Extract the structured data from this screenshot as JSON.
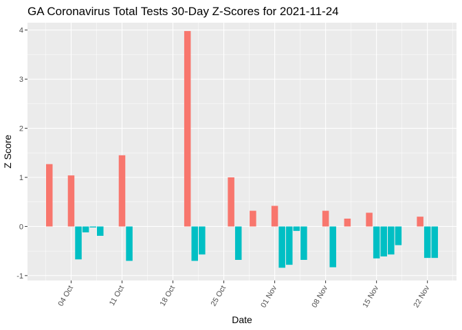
{
  "chart_data": {
    "type": "bar",
    "title": "GA Coronavirus Total Tests 30-Day Z-Scores for 2021-11-24",
    "xlabel": "Date",
    "ylabel": "Z Score",
    "x_ticks": [
      {
        "label": "04 Oct",
        "date": "2021-10-04"
      },
      {
        "label": "11 Oct",
        "date": "2021-10-11"
      },
      {
        "label": "18 Oct",
        "date": "2021-10-18"
      },
      {
        "label": "25 Oct",
        "date": "2021-10-25"
      },
      {
        "label": "01 Nov",
        "date": "2021-11-01"
      },
      {
        "label": "08 Nov",
        "date": "2021-11-08"
      },
      {
        "label": "15 Nov",
        "date": "2021-11-15"
      },
      {
        "label": "22 Nov",
        "date": "2021-11-22"
      }
    ],
    "y_ticks": [
      -1,
      0,
      1,
      2,
      3,
      4
    ],
    "ylim": [
      -1.1,
      4.15
    ],
    "xlim": [
      "2021-09-28",
      "2021-11-26"
    ],
    "grid": true,
    "legend": "none",
    "colors": {
      "positive": "#F8766D",
      "negative": "#00BFC4",
      "panel": "#EBEBEB",
      "grid": "#FFFFFF"
    },
    "values": [
      {
        "date": "2021-10-01",
        "value": 1.27
      },
      {
        "date": "2021-10-04",
        "value": 1.04
      },
      {
        "date": "2021-10-05",
        "value": -0.67
      },
      {
        "date": "2021-10-06",
        "value": -0.12
      },
      {
        "date": "2021-10-07",
        "value": -0.02
      },
      {
        "date": "2021-10-08",
        "value": -0.19
      },
      {
        "date": "2021-10-11",
        "value": 1.45
      },
      {
        "date": "2021-10-12",
        "value": -0.7
      },
      {
        "date": "2021-10-20",
        "value": 3.98
      },
      {
        "date": "2021-10-21",
        "value": -0.7
      },
      {
        "date": "2021-10-22",
        "value": -0.57
      },
      {
        "date": "2021-10-26",
        "value": 1.0
      },
      {
        "date": "2021-10-27",
        "value": -0.68
      },
      {
        "date": "2021-10-29",
        "value": 0.32
      },
      {
        "date": "2021-11-01",
        "value": 0.42
      },
      {
        "date": "2021-11-02",
        "value": -0.84
      },
      {
        "date": "2021-11-03",
        "value": -0.78
      },
      {
        "date": "2021-11-04",
        "value": -0.09
      },
      {
        "date": "2021-11-05",
        "value": -0.68
      },
      {
        "date": "2021-11-08",
        "value": 0.32
      },
      {
        "date": "2021-11-09",
        "value": -0.83
      },
      {
        "date": "2021-11-11",
        "value": 0.16
      },
      {
        "date": "2021-11-14",
        "value": 0.28
      },
      {
        "date": "2021-11-15",
        "value": -0.65
      },
      {
        "date": "2021-11-16",
        "value": -0.61
      },
      {
        "date": "2021-11-17",
        "value": -0.57
      },
      {
        "date": "2021-11-18",
        "value": -0.38
      },
      {
        "date": "2021-11-21",
        "value": 0.2
      },
      {
        "date": "2021-11-22",
        "value": -0.64
      },
      {
        "date": "2021-11-23",
        "value": -0.64
      }
    ]
  }
}
